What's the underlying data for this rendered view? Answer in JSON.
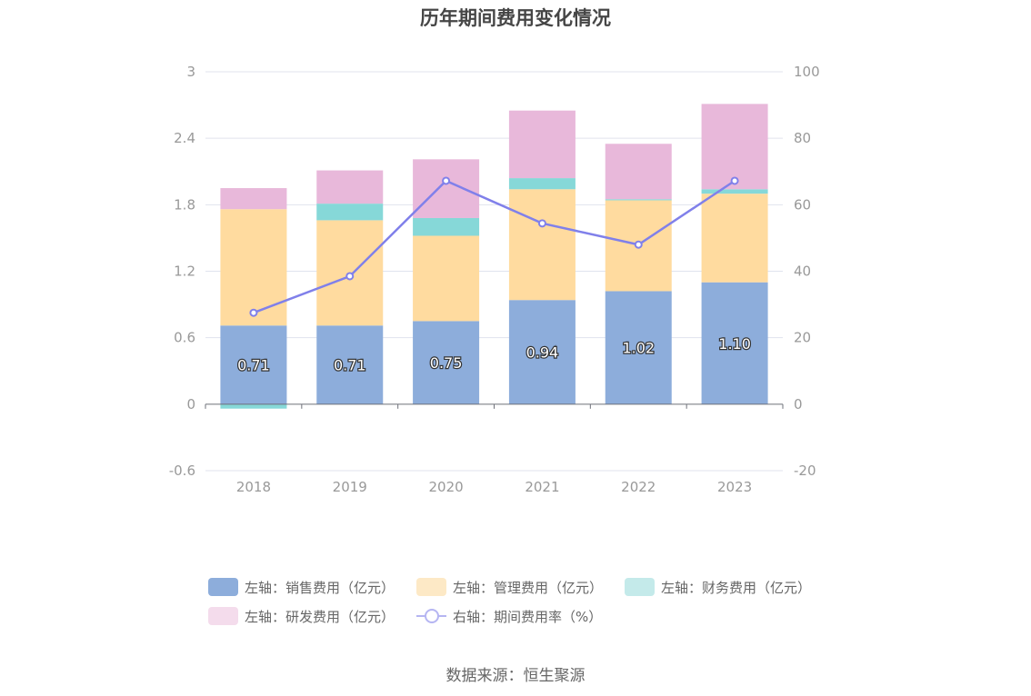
{
  "title": "历年期间费用变化情况",
  "source": "数据来源：恒生聚源",
  "colors": {
    "sales": "#8daddb",
    "admin": "#ffdb9f",
    "finance": "#86d8d8",
    "rd": "#e8b8da",
    "ratio": "#8080ea"
  },
  "legend": {
    "items": [
      {
        "label": "左轴：销售费用（亿元）",
        "swatch": "#8daddb"
      },
      {
        "label": "左轴：管理费用（亿元）",
        "swatch": "#fde9c6"
      },
      {
        "label": "左轴：财务费用（亿元）",
        "swatch": "#c4eaea"
      },
      {
        "label": "左轴：研发费用（亿元）",
        "swatch": "#f4dcec"
      },
      {
        "label": "右轴：期间费用率（%）",
        "swatch": "#b5b5f2"
      }
    ]
  },
  "chart_data": {
    "type": "bar",
    "stacked": true,
    "categories": [
      "2018",
      "2019",
      "2020",
      "2021",
      "2022",
      "2023"
    ],
    "left_axis": {
      "ticks": [
        "3",
        "2.4",
        "1.8",
        "1.2",
        "0.6",
        "0",
        "-0.6"
      ],
      "ylim": [
        -0.6,
        3
      ]
    },
    "right_axis": {
      "ticks": [
        "100",
        "80",
        "60",
        "40",
        "20",
        "0",
        "-20"
      ],
      "ylim": [
        -20,
        100
      ]
    },
    "series": [
      {
        "name": "左轴：销售费用（亿元）",
        "axis": "left",
        "type": "bar",
        "values": [
          0.71,
          0.71,
          0.75,
          0.94,
          1.02,
          1.1
        ],
        "labels": [
          "0.71",
          "0.71",
          "0.75",
          "0.94",
          "1.02",
          "1.10"
        ]
      },
      {
        "name": "左轴：管理费用（亿元）",
        "axis": "left",
        "type": "bar",
        "values": [
          1.05,
          0.95,
          0.77,
          1.0,
          0.82,
          0.8
        ]
      },
      {
        "name": "左轴：财务费用（亿元）",
        "axis": "left",
        "type": "bar",
        "values": [
          -0.04,
          0.15,
          0.16,
          0.1,
          0.01,
          0.04
        ]
      },
      {
        "name": "左轴：研发费用（亿元）",
        "axis": "left",
        "type": "bar",
        "values": [
          0.19,
          0.3,
          0.53,
          0.61,
          0.5,
          0.77
        ]
      },
      {
        "name": "右轴：期间费用率（%）",
        "axis": "right",
        "type": "line",
        "values": [
          27.5,
          38.5,
          67.2,
          54.4,
          48.0,
          67.2
        ]
      }
    ]
  }
}
